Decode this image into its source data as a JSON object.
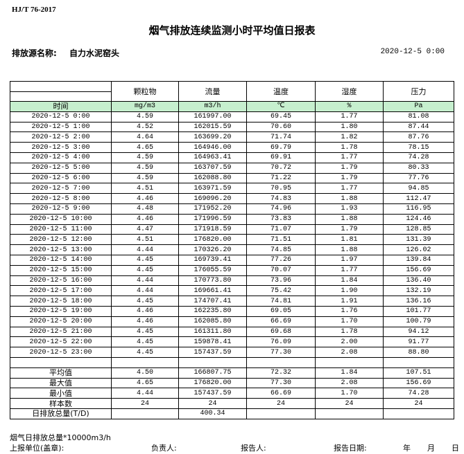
{
  "standard": "HJ/T 76-2017",
  "title": "烟气排放连续监测小时平均值日报表",
  "source_label": "排放源名称:",
  "source_name": "自力水泥窑头",
  "report_datetime": "2020-12-5 0:00",
  "columns": [
    "颗粒物",
    "流量",
    "温度",
    "湿度",
    "压力"
  ],
  "time_header": "时间",
  "units": [
    "mg/m3",
    "m3/h",
    "℃",
    "%",
    "Pa"
  ],
  "header_color": "#c6efce",
  "rows": [
    [
      "2020-12-5 0:00",
      "4.59",
      "161997.00",
      "69.45",
      "1.77",
      "81.08"
    ],
    [
      "2020-12-5 1:00",
      "4.52",
      "162015.59",
      "70.60",
      "1.80",
      "87.44"
    ],
    [
      "2020-12-5 2:00",
      "4.64",
      "163699.20",
      "71.74",
      "1.82",
      "87.76"
    ],
    [
      "2020-12-5 3:00",
      "4.65",
      "164946.00",
      "69.79",
      "1.78",
      "78.15"
    ],
    [
      "2020-12-5 4:00",
      "4.59",
      "164963.41",
      "69.91",
      "1.77",
      "74.28"
    ],
    [
      "2020-12-5 5:00",
      "4.59",
      "163707.59",
      "70.72",
      "1.79",
      "80.33"
    ],
    [
      "2020-12-5 6:00",
      "4.59",
      "162088.80",
      "71.22",
      "1.79",
      "77.76"
    ],
    [
      "2020-12-5 7:00",
      "4.51",
      "163971.59",
      "70.95",
      "1.77",
      "94.85"
    ],
    [
      "2020-12-5 8:00",
      "4.46",
      "169096.20",
      "74.83",
      "1.88",
      "112.47"
    ],
    [
      "2020-12-5 9:00",
      "4.48",
      "171952.20",
      "74.96",
      "1.93",
      "116.95"
    ],
    [
      "2020-12-5 10:00",
      "4.46",
      "171996.59",
      "73.83",
      "1.88",
      "124.46"
    ],
    [
      "2020-12-5 11:00",
      "4.47",
      "171918.59",
      "71.07",
      "1.79",
      "128.85"
    ],
    [
      "2020-12-5 12:00",
      "4.51",
      "176820.00",
      "71.51",
      "1.81",
      "131.39"
    ],
    [
      "2020-12-5 13:00",
      "4.44",
      "170326.20",
      "74.85",
      "1.88",
      "126.02"
    ],
    [
      "2020-12-5 14:00",
      "4.45",
      "169739.41",
      "77.26",
      "1.97",
      "139.84"
    ],
    [
      "2020-12-5 15:00",
      "4.45",
      "176055.59",
      "70.07",
      "1.77",
      "156.69"
    ],
    [
      "2020-12-5 16:00",
      "4.44",
      "170773.80",
      "73.96",
      "1.84",
      "136.40"
    ],
    [
      "2020-12-5 17:00",
      "4.44",
      "169661.41",
      "75.42",
      "1.90",
      "132.19"
    ],
    [
      "2020-12-5 18:00",
      "4.45",
      "174707.41",
      "74.81",
      "1.91",
      "136.16"
    ],
    [
      "2020-12-5 19:00",
      "4.46",
      "162235.80",
      "69.05",
      "1.76",
      "101.77"
    ],
    [
      "2020-12-5 20:00",
      "4.46",
      "162085.80",
      "66.69",
      "1.70",
      "100.79"
    ],
    [
      "2020-12-5 21:00",
      "4.45",
      "161311.80",
      "69.68",
      "1.78",
      "94.12"
    ],
    [
      "2020-12-5 22:00",
      "4.45",
      "159878.41",
      "76.09",
      "2.00",
      "91.77"
    ],
    [
      "2020-12-5 23:00",
      "4.45",
      "157437.59",
      "77.30",
      "2.08",
      "88.80"
    ]
  ],
  "summary": [
    [
      "平均值",
      "4.50",
      "166807.75",
      "72.32",
      "1.84",
      "107.51"
    ],
    [
      "最大值",
      "4.65",
      "176820.00",
      "77.30",
      "2.08",
      "156.69"
    ],
    [
      "最小值",
      "4.44",
      "157437.59",
      "66.69",
      "1.70",
      "74.28"
    ],
    [
      "样本数",
      "24",
      "24",
      "24",
      "24",
      "24"
    ],
    [
      "日排放总量(T/D)",
      "",
      "400.34",
      "",
      "",
      ""
    ]
  ],
  "footer": {
    "note": "烟气日排放总量*10000m3/h",
    "unit_label": "上报单位(盖章):",
    "responsible_label": "负责人:",
    "reporter_label": "报告人:",
    "report_date_label": "报告日期:",
    "year": "年",
    "month": "月",
    "day": "日"
  }
}
